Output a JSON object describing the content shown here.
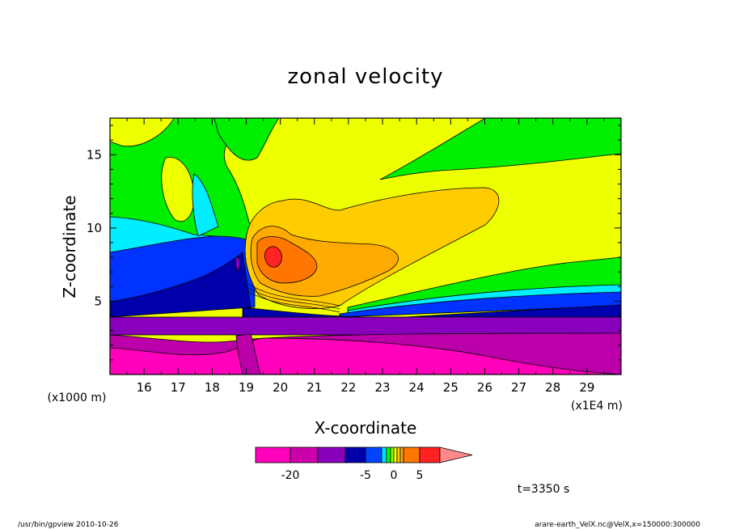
{
  "chart_data": {
    "type": "heatmap",
    "title": "zonal velocity",
    "xlabel": "X-coordinate",
    "ylabel": "Z-coordinate",
    "x_unit_label": "(x1E4 m)",
    "y_unit_label": "(x1000 m)",
    "x_ticks": [
      "16",
      "17",
      "18",
      "19",
      "20",
      "21",
      "22",
      "23",
      "24",
      "25",
      "26",
      "27",
      "28",
      "29"
    ],
    "y_ticks": [
      "5",
      "10",
      "15"
    ],
    "xlim": [
      15.0,
      30.0
    ],
    "ylim": [
      0.0,
      17.5
    ],
    "colorbar": {
      "levels": [
        -25,
        -20,
        -15,
        -10,
        -5,
        -3,
        -2,
        -1,
        0,
        1,
        2,
        3,
        5,
        10,
        15,
        20
      ],
      "tick_labels": [
        "-20",
        "-5",
        "0",
        "5"
      ],
      "colors": [
        "#ff00bb",
        "#cc00aa",
        "#8800bb",
        "#0000aa",
        "#0044ff",
        "#00ddff",
        "#00ff00",
        "#88ff00",
        "#ffff00",
        "#ffcc00",
        "#ffaa00",
        "#ff7700",
        "#ff2222",
        "#ff8888"
      ]
    },
    "time_label": "t=3350 s"
  },
  "footer": {
    "left": "/usr/bin/gpview   2010-10-26",
    "right": "arare-earth_VelX.nc@VelX,x=150000:300000"
  }
}
